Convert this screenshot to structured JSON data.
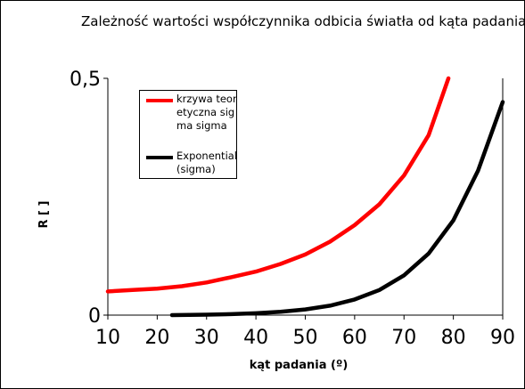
{
  "chart_data": {
    "type": "line",
    "title": "Zależność wartości współczynnika odbicia światła od kąta padania dla światła o polaryzacji sigma",
    "xlabel": "kąt padania (º)",
    "ylabel": "R [ ]",
    "xlim": [
      10,
      90
    ],
    "ylim": [
      0,
      0.5
    ],
    "x_ticks": [
      "10",
      "20",
      "30",
      "40",
      "50",
      "60",
      "70",
      "80",
      "90"
    ],
    "y_ticks": [
      "0",
      "0,5"
    ],
    "grid": false,
    "legend_position": "top-left",
    "series": [
      {
        "name": "krzywa teoretyczna sigma sigma",
        "color": "#ff0000",
        "x": [
          10,
          15,
          20,
          25,
          30,
          35,
          40,
          45,
          50,
          55,
          60,
          65,
          70,
          75,
          79
        ],
        "y": [
          0.05,
          0.053,
          0.056,
          0.061,
          0.069,
          0.08,
          0.092,
          0.108,
          0.128,
          0.155,
          0.19,
          0.234,
          0.295,
          0.38,
          0.5
        ]
      },
      {
        "name": "Exponential (sigma)",
        "color": "#000000",
        "x": [
          23,
          30,
          35,
          40,
          45,
          50,
          55,
          60,
          65,
          70,
          75,
          80,
          85,
          90
        ],
        "y": [
          0.0,
          0.001,
          0.002,
          0.004,
          0.007,
          0.012,
          0.02,
          0.033,
          0.053,
          0.084,
          0.13,
          0.2,
          0.305,
          0.45
        ]
      }
    ]
  }
}
